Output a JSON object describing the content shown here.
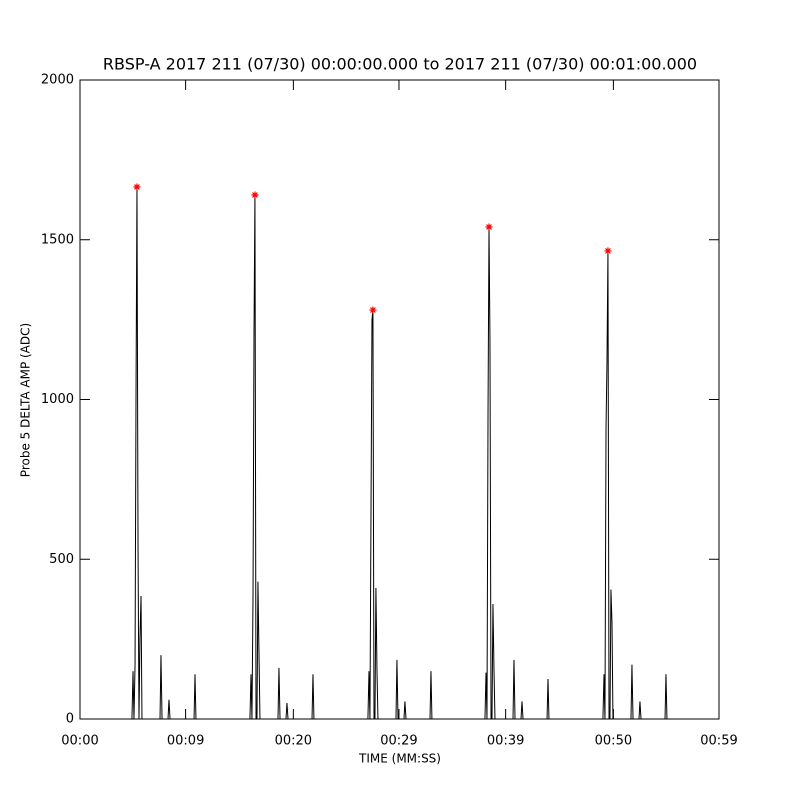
{
  "chart_data": {
    "type": "line",
    "title": "RBSP-A 2017 211 (07/30) 00:00:00.000 to 2017 211 (07/30) 00:01:00.000",
    "x_label": "TIME (MM:SS)",
    "y_label": "Probe 5 DELTA AMP (ADC)",
    "xlim": [
      0,
      59.9
    ],
    "ylim": [
      0,
      2000
    ],
    "xticks": [
      {
        "value": 0,
        "label": "00:00"
      },
      {
        "value": 9.9,
        "label": "00:09"
      },
      {
        "value": 20,
        "label": "00:20"
      },
      {
        "value": 29.9,
        "label": "00:29"
      },
      {
        "value": 39.9,
        "label": "00:39"
      },
      {
        "value": 50,
        "label": "00:50"
      },
      {
        "value": 59.9,
        "label": "00:59"
      }
    ],
    "yticks": [
      0,
      500,
      1000,
      1500,
      2000
    ],
    "line": {
      "color": "#000000",
      "x": [
        3.56,
        4.87,
        4.97,
        5.06,
        5.16,
        5.25,
        5.34,
        5.44,
        5.53,
        5.62,
        5.72,
        5.81,
        7.5,
        7.59,
        7.69,
        8.25,
        8.34,
        8.44,
        10.69,
        10.78,
        10.87,
        14.62,
        15.93,
        16.03,
        16.12,
        16.22,
        16.31,
        16.4,
        16.5,
        16.59,
        16.68,
        16.78,
        16.87,
        18.56,
        18.65,
        18.75,
        19.31,
        19.4,
        19.5,
        21.75,
        21.84,
        21.93,
        25.68,
        26.99,
        27.09,
        27.18,
        27.28,
        27.37,
        27.46,
        27.56,
        27.65,
        27.74,
        27.84,
        27.93,
        29.62,
        29.71,
        29.81,
        30.37,
        30.46,
        30.56,
        32.81,
        32.9,
        32.99,
        36.65,
        37.96,
        38.06,
        38.15,
        38.25,
        38.34,
        38.43,
        38.53,
        38.62,
        38.71,
        38.81,
        38.9,
        40.59,
        40.68,
        40.78,
        41.34,
        41.43,
        41.53,
        43.78,
        43.87,
        43.96,
        47.71,
        49.02,
        49.12,
        49.21,
        49.31,
        49.4,
        49.49,
        49.59,
        49.68,
        49.77,
        49.87,
        49.96,
        51.65,
        51.74,
        51.84,
        52.4,
        52.49,
        52.59,
        54.84,
        54.93,
        55.02,
        59.8
      ],
      "values": [
        0,
        0,
        150,
        0,
        170,
        1010,
        1665,
        540,
        0,
        250,
        385,
        0,
        0,
        200,
        0,
        0,
        60,
        0,
        0,
        140,
        0,
        0,
        0,
        140,
        0,
        390,
        1200,
        1640,
        0,
        0,
        430,
        200,
        0,
        0,
        160,
        0,
        0,
        50,
        0,
        0,
        140,
        0,
        0,
        0,
        150,
        0,
        660,
        1250,
        1280,
        0,
        0,
        410,
        150,
        0,
        0,
        185,
        0,
        0,
        55,
        0,
        0,
        150,
        0,
        0,
        0,
        145,
        0,
        970,
        1540,
        1190,
        0,
        0,
        360,
        150,
        0,
        0,
        185,
        0,
        0,
        55,
        0,
        0,
        125,
        0,
        0,
        0,
        140,
        0,
        910,
        1120,
        1465,
        0,
        0,
        405,
        300,
        0,
        0,
        170,
        0,
        0,
        55,
        0,
        0,
        140,
        0,
        0
      ]
    },
    "peaks": {
      "color": "#ff0000",
      "marker": "*",
      "x": [
        5.34,
        16.4,
        27.46,
        38.34,
        49.49
      ],
      "values": [
        1665,
        1640,
        1280,
        1540,
        1465
      ]
    }
  }
}
